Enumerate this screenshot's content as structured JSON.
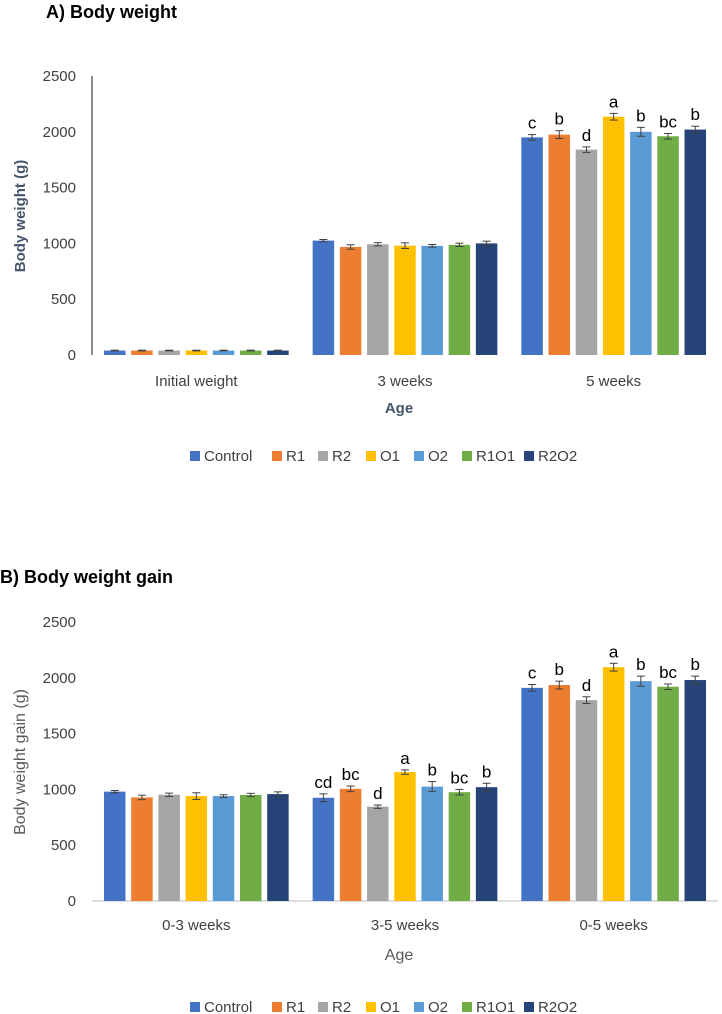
{
  "colors": {
    "Control": "#4472C4",
    "R1": "#ED7D31",
    "R2": "#A5A5A5",
    "O1": "#FFC000",
    "O2": "#5B9BD5",
    "R1O1": "#70AD47",
    "R2O2": "#264478"
  },
  "chart_data": [
    {
      "type": "bar",
      "panel_title": "A)   Body weight",
      "xlabel": "Age",
      "ylabel": "Body weight (g)",
      "ylim": [
        0,
        2500
      ],
      "yticks": [
        "0",
        "500",
        "1000",
        "1500",
        "2000",
        "2500"
      ],
      "categories": [
        "Initial weight",
        "3 weeks",
        "5 weeks"
      ],
      "legend_position": "bottom",
      "series": [
        {
          "name": "Control",
          "values": [
            40,
            1025,
            1950
          ],
          "errors": [
            3,
            10,
            25
          ],
          "labels": [
            "",
            "",
            "c"
          ]
        },
        {
          "name": "R1",
          "values": [
            40,
            968,
            1975
          ],
          "errors": [
            3,
            20,
            35
          ],
          "labels": [
            "",
            "",
            "b"
          ]
        },
        {
          "name": "R2",
          "values": [
            40,
            992,
            1840
          ],
          "errors": [
            3,
            15,
            25
          ],
          "labels": [
            "",
            "",
            "d"
          ]
        },
        {
          "name": "O1",
          "values": [
            40,
            980,
            2135
          ],
          "errors": [
            3,
            25,
            30
          ],
          "labels": [
            "",
            "",
            "a"
          ]
        },
        {
          "name": "O2",
          "values": [
            40,
            978,
            2000
          ],
          "errors": [
            3,
            12,
            40
          ],
          "labels": [
            "",
            "",
            "b"
          ]
        },
        {
          "name": "R1O1",
          "values": [
            40,
            987,
            1960
          ],
          "errors": [
            3,
            15,
            25
          ],
          "labels": [
            "",
            "",
            "bc"
          ]
        },
        {
          "name": "R2O2",
          "values": [
            40,
            1000,
            2020
          ],
          "errors": [
            3,
            20,
            30
          ],
          "labels": [
            "",
            "",
            "b"
          ]
        }
      ]
    },
    {
      "type": "bar",
      "panel_title": "B) Body weight gain",
      "xlabel": "Age",
      "ylabel": "Body weight gain (g)",
      "ylim": [
        0,
        2500
      ],
      "yticks": [
        "0",
        "500",
        "1000",
        "1500",
        "2000",
        "2500"
      ],
      "categories": [
        "0-3 weeks",
        "3-5 weeks",
        "0-5 weeks"
      ],
      "legend_position": "bottom",
      "series": [
        {
          "name": "Control",
          "values": [
            980,
            925,
            1910
          ],
          "errors": [
            10,
            35,
            30
          ],
          "labels": [
            "",
            "cd",
            "c"
          ]
        },
        {
          "name": "R1",
          "values": [
            928,
            1005,
            1935
          ],
          "errors": [
            20,
            25,
            35
          ],
          "labels": [
            "",
            "bc",
            "b"
          ]
        },
        {
          "name": "R2",
          "values": [
            952,
            845,
            1800
          ],
          "errors": [
            15,
            15,
            30
          ],
          "labels": [
            "",
            "d",
            "d"
          ]
        },
        {
          "name": "O1",
          "values": [
            940,
            1155,
            2095
          ],
          "errors": [
            30,
            20,
            35
          ],
          "labels": [
            "",
            "a",
            "a"
          ]
        },
        {
          "name": "O2",
          "values": [
            940,
            1025,
            1970
          ],
          "errors": [
            12,
            45,
            45
          ],
          "labels": [
            "",
            "b",
            "b"
          ]
        },
        {
          "name": "R1O1",
          "values": [
            950,
            975,
            1920
          ],
          "errors": [
            15,
            25,
            25
          ],
          "labels": [
            "",
            "bc",
            "bc"
          ]
        },
        {
          "name": "R2O2",
          "values": [
            958,
            1020,
            1980
          ],
          "errors": [
            20,
            35,
            35
          ],
          "labels": [
            "",
            "b",
            "b"
          ]
        }
      ]
    }
  ]
}
